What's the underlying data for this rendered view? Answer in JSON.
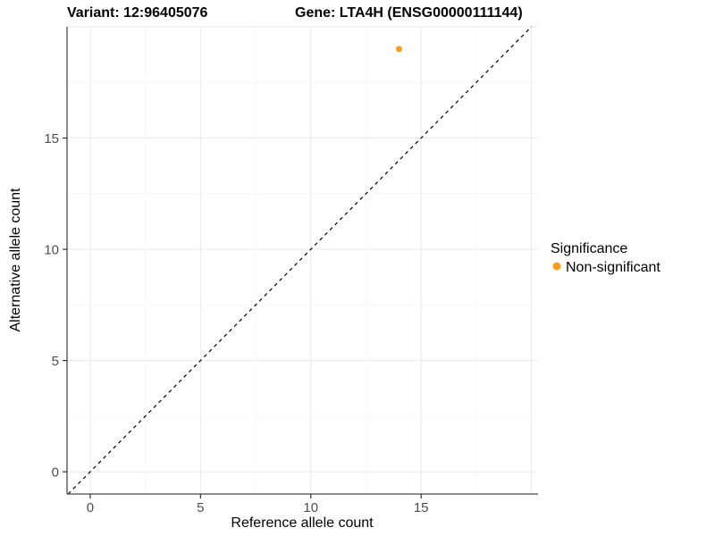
{
  "chart_data": {
    "type": "scatter",
    "title_left": "Variant: 12:96405076",
    "title_right": "Gene: LTA4H (ENSG00000111144)",
    "xlabel": "Reference allele count",
    "ylabel": "Alternative allele count",
    "xlim": [
      -1.05,
      20.3
    ],
    "ylim": [
      -1,
      20
    ],
    "xticks": [
      0,
      5,
      10,
      15
    ],
    "yticks": [
      0,
      5,
      10,
      15
    ],
    "grid_major_step": 5,
    "grid_minor_step": 2.5,
    "grid_min": 0,
    "grid_max": 20,
    "grid_on": true,
    "points": [
      {
        "x": 14,
        "y": 19,
        "series": "Non-significant"
      }
    ],
    "diagonal": {
      "slope": 1,
      "intercept": 0,
      "style": "dashed"
    },
    "legend": {
      "position": "right",
      "title": "Significance",
      "items": [
        {
          "label": "Non-significant",
          "color": "#FA9E1E"
        }
      ]
    },
    "colors": {
      "point": "#FA9E1E",
      "grid_major": "#E9E9E9",
      "grid_minor": "#F4F4F4",
      "axis_line": "#4a4a4a",
      "tick_mark": "#333333",
      "diagonal_line": "#000000"
    }
  }
}
